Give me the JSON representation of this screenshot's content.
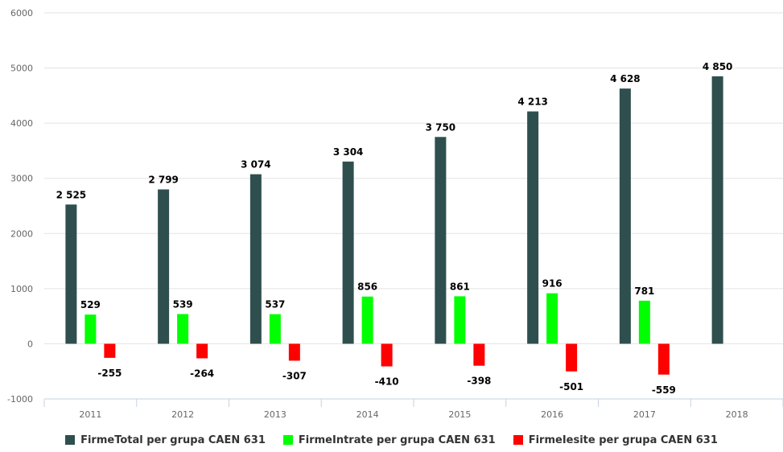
{
  "chart_data": {
    "type": "bar",
    "categories": [
      "2011",
      "2012",
      "2013",
      "2014",
      "2015",
      "2016",
      "2017",
      "2018"
    ],
    "series": [
      {
        "name": "FirmeTotal per grupa CAEN 631",
        "color": "#2f4f4f",
        "values": [
          2525,
          2799,
          3074,
          3304,
          3750,
          4213,
          4628,
          4850
        ],
        "labels": [
          "2 525",
          "2 799",
          "3 074",
          "3 304",
          "3 750",
          "4 213",
          "4 628",
          "4 850"
        ]
      },
      {
        "name": "FirmeIntrate per grupa CAEN 631",
        "color": "#00ff00",
        "values": [
          529,
          539,
          537,
          856,
          861,
          916,
          781,
          null
        ],
        "labels": [
          "529",
          "539",
          "537",
          "856",
          "861",
          "916",
          "781",
          ""
        ]
      },
      {
        "name": "FirmeIesite per grupa CAEN 631",
        "color": "#ff0000",
        "values": [
          -255,
          -264,
          -307,
          -410,
          -398,
          -501,
          -559,
          null
        ],
        "labels": [
          "-255",
          "-264",
          "-307",
          "-410",
          "-398",
          "-501",
          "-559",
          ""
        ]
      }
    ],
    "ylim": [
      -1000,
      6000
    ],
    "yticks": [
      -1000,
      0,
      1000,
      2000,
      3000,
      4000,
      5000,
      6000
    ],
    "ytick_labels": [
      "-1000",
      "0",
      "1000",
      "2000",
      "3000",
      "4000",
      "5000",
      "6000"
    ],
    "grid": true,
    "legend_position": "bottom"
  }
}
